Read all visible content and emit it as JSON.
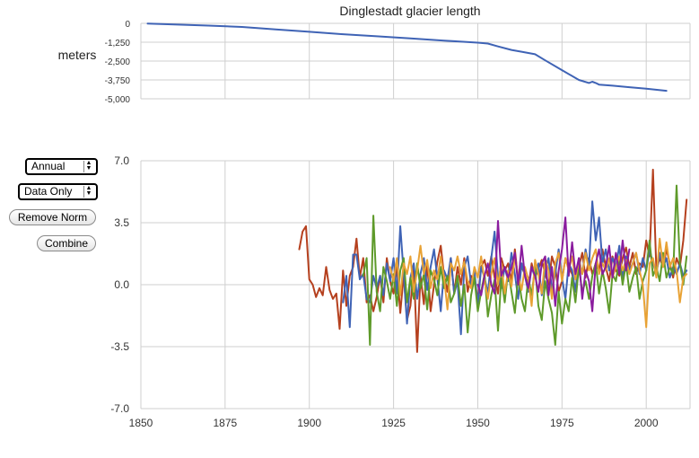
{
  "controls": {
    "period_select": "Annual",
    "mode_select": "Data Only",
    "remove_norm_label": "Remove Norm",
    "combine_label": "Combine"
  },
  "chart_data": [
    {
      "type": "line",
      "title": "Dinglestadt glacier length",
      "ylabel": "meters",
      "xlim": [
        1850,
        2013
      ],
      "ylim": [
        -5000,
        0
      ],
      "yticks": [
        "0",
        "-1,250",
        "-2,500",
        "-3,750",
        "-5,000"
      ],
      "ytick_values": [
        0,
        -1250,
        -2500,
        -3750,
        -5000
      ],
      "grid": true,
      "series": [
        {
          "color": "#3f63b5",
          "x": [
            1852,
            1860,
            1870,
            1880,
            1890,
            1900,
            1910,
            1920,
            1930,
            1940,
            1950,
            1953,
            1956,
            1960,
            1963,
            1967,
            1970,
            1975,
            1980,
            1983,
            1984,
            1985,
            1986,
            1990,
            1995,
            2000,
            2006
          ],
          "y": [
            -10,
            -70,
            -150,
            -240,
            -400,
            -560,
            -720,
            -860,
            -1000,
            -1140,
            -1280,
            -1340,
            -1530,
            -1760,
            -1880,
            -2050,
            -2450,
            -3100,
            -3750,
            -3950,
            -3870,
            -3950,
            -4060,
            -4130,
            -4230,
            -4330,
            -4470
          ]
        }
      ]
    },
    {
      "type": "line",
      "xlim": [
        1850,
        2013
      ],
      "ylim": [
        -7,
        7
      ],
      "xticks": [
        "1850",
        "1875",
        "1900",
        "1925",
        "1950",
        "1975",
        "2000"
      ],
      "xtick_values": [
        1850,
        1875,
        1900,
        1925,
        1950,
        1975,
        2000
      ],
      "yticks": [
        "7.0",
        "3.5",
        "0.0",
        "-3.5",
        "-7.0"
      ],
      "ytick_values": [
        7,
        3.5,
        0,
        -3.5,
        -7
      ],
      "grid": true,
      "series": [
        {
          "color": "#b5401e",
          "x": [
            1897,
            1898,
            1899,
            1900,
            1901,
            1902,
            1903,
            1904,
            1905,
            1906,
            1907,
            1908,
            1909,
            1910,
            1911,
            1912,
            1913,
            1914,
            1915,
            1916,
            1917,
            1918,
            1919,
            1920,
            1921,
            1922,
            1923,
            1924,
            1925,
            1926,
            1927,
            1928,
            1929,
            1930,
            1931,
            1932,
            1933,
            1934,
            1935,
            1936,
            1937,
            1938,
            1939,
            1940,
            1941,
            1942,
            1943,
            1944,
            1945,
            1946,
            1947,
            1948,
            1949,
            1950,
            1951,
            1952,
            1953,
            1954,
            1955,
            1956,
            1957,
            1958,
            1959,
            1960,
            1961,
            1962,
            1963,
            1964,
            1965,
            1966,
            1967,
            1968,
            1969,
            1970,
            1971,
            1972,
            1973,
            1974,
            1975,
            1976,
            1977,
            1978,
            1979,
            1980,
            1981,
            1982,
            1983,
            1984,
            1985,
            1986,
            1987,
            1988,
            1989,
            1990,
            1991,
            1992,
            1993,
            1994,
            1995,
            1996,
            1997,
            1998,
            1999,
            2000,
            2001,
            2002,
            2003,
            2004,
            2005,
            2006,
            2007,
            2008,
            2009,
            2010,
            2011,
            2012
          ],
          "y": [
            2.0,
            3.0,
            3.3,
            0.3,
            0.0,
            -0.7,
            -0.2,
            -0.6,
            1.0,
            -0.3,
            -0.8,
            -0.5,
            -2.5,
            0.8,
            -1.2,
            0.5,
            1.0,
            2.6,
            0.4,
            1.5,
            -1.0,
            -0.6,
            -1.5,
            -0.7,
            0.5,
            -1.0,
            1.5,
            0.2,
            -0.5,
            1.0,
            -1.6,
            0.6,
            -2.0,
            -1.2,
            1.0,
            -3.8,
            0.5,
            -1.1,
            1.2,
            -1.5,
            0.0,
            1.3,
            2.2,
            0.5,
            -0.4,
            1.5,
            -0.5,
            1.0,
            0.0,
            1.5,
            -0.4,
            0.5,
            0.2,
            -0.8,
            1.0,
            1.4,
            0.5,
            1.6,
            0.4,
            -0.5,
            1.5,
            0.8,
            1.2,
            0.2,
            2.0,
            0.2,
            1.0,
            0.6,
            -0.2,
            1.2,
            0.4,
            0.9,
            1.4,
            0.6,
            0.0,
            1.6,
            1.0,
            -0.4,
            0.2,
            1.5,
            1.0,
            0.6,
            -0.3,
            1.0,
            1.8,
            0.4,
            1.5,
            0.6,
            1.2,
            0.8,
            2.0,
            1.0,
            0.2,
            1.6,
            0.8,
            0.5,
            1.5,
            2.1,
            1.0,
            1.8,
            0.6,
            1.2,
            1.0,
            2.5,
            1.6,
            6.5,
            0.8,
            1.5,
            1.0,
            2.0,
            1.2,
            0.4,
            1.5,
            1.0,
            2.5,
            4.8
          ]
        },
        {
          "color": "#3f63b5",
          "x": [
            1910,
            1911,
            1912,
            1913,
            1914,
            1915,
            1916,
            1917,
            1918,
            1919,
            1920,
            1921,
            1922,
            1923,
            1924,
            1925,
            1926,
            1927,
            1928,
            1929,
            1930,
            1931,
            1932,
            1933,
            1934,
            1935,
            1936,
            1937,
            1938,
            1939,
            1940,
            1941,
            1942,
            1943,
            1944,
            1945,
            1946,
            1947,
            1948,
            1949,
            1950,
            1951,
            1952,
            1953,
            1954,
            1955,
            1956,
            1957,
            1958,
            1959,
            1960,
            1961,
            1962,
            1963,
            1964,
            1965,
            1966,
            1967,
            1968,
            1969,
            1970,
            1971,
            1972,
            1973,
            1974,
            1975,
            1976,
            1977,
            1978,
            1979,
            1980,
            1981,
            1982,
            1983,
            1984,
            1985,
            1986,
            1987,
            1988,
            1989,
            1990,
            1991,
            1992,
            1993,
            1994,
            1995,
            1996,
            1997,
            1998,
            1999,
            2000,
            2001,
            2002,
            2003,
            2004,
            2005,
            2006,
            2007,
            2008,
            2009,
            2010,
            2011,
            2012
          ],
          "y": [
            -1.0,
            0.5,
            -2.4,
            1.7,
            1.7,
            0.3,
            0.6,
            -0.8,
            -1.0,
            0.5,
            -0.2,
            0.5,
            -0.6,
            1.2,
            0.2,
            1.5,
            -0.5,
            3.3,
            0.6,
            -2.2,
            0.4,
            1.2,
            -0.8,
            0.6,
            1.5,
            -0.3,
            1.0,
            2.0,
            0.4,
            -1.5,
            0.8,
            0.3,
            1.5,
            -0.5,
            0.2,
            -2.8,
            1.0,
            1.6,
            0.0,
            0.8,
            -1.2,
            1.0,
            0.4,
            -0.5,
            1.5,
            3.0,
            0.5,
            -0.2,
            1.0,
            0.2,
            1.8,
            0.6,
            -0.8,
            1.2,
            0.5,
            -0.4,
            1.0,
            0.4,
            1.2,
            -0.6,
            0.8,
            1.5,
            -0.3,
            0.6,
            2.0,
            0.4,
            -0.8,
            1.2,
            0.8,
            -0.4,
            1.5,
            0.6,
            2.0,
            1.0,
            4.7,
            2.5,
            3.8,
            1.2,
            2.0,
            0.8,
            1.5,
            1.0,
            2.2,
            0.4,
            1.6,
            0.8,
            1.2,
            1.8,
            0.6,
            1.5,
            0.8,
            2.0,
            1.2,
            0.6,
            1.8,
            1.0,
            1.5,
            0.4,
            1.0,
            0.6,
            1.2,
            0.5,
            0.8
          ]
        },
        {
          "color": "#5e9a2a",
          "x": [
            1916,
            1917,
            1918,
            1919,
            1920,
            1921,
            1922,
            1923,
            1924,
            1925,
            1926,
            1927,
            1928,
            1929,
            1930,
            1931,
            1932,
            1933,
            1934,
            1935,
            1936,
            1937,
            1938,
            1939,
            1940,
            1941,
            1942,
            1943,
            1944,
            1945,
            1946,
            1947,
            1948,
            1949,
            1950,
            1951,
            1952,
            1953,
            1954,
            1955,
            1956,
            1957,
            1958,
            1959,
            1960,
            1961,
            1962,
            1963,
            1964,
            1965,
            1966,
            1967,
            1968,
            1969,
            1970,
            1971,
            1972,
            1973,
            1974,
            1975,
            1976,
            1977,
            1978,
            1979,
            1980,
            1981,
            1982,
            1983,
            1984,
            1985,
            1986,
            1987,
            1988,
            1989,
            1990,
            1991,
            1992,
            1993,
            1994,
            1995,
            1996,
            1997,
            1998,
            1999,
            2000,
            2001,
            2002,
            2003,
            2004,
            2005,
            2006,
            2007,
            2008,
            2009,
            2010,
            2011,
            2012
          ],
          "y": [
            0.5,
            1.5,
            -3.4,
            3.9,
            -0.4,
            -1.5,
            1.0,
            0.2,
            -0.8,
            0.6,
            -1.2,
            0.8,
            1.5,
            -1.0,
            0.4,
            -0.8,
            1.2,
            -0.2,
            0.6,
            -1.4,
            0.8,
            0.3,
            -0.6,
            1.0,
            -0.2,
            0.5,
            -1.0,
            -0.5,
            0.5,
            -1.2,
            0.0,
            -2.7,
            -0.6,
            0.4,
            -1.5,
            -0.4,
            0.6,
            -1.8,
            -0.6,
            0.3,
            -2.6,
            0.4,
            -1.0,
            0.8,
            -0.4,
            -1.6,
            0.5,
            -0.8,
            -1.5,
            0.4,
            -0.6,
            1.0,
            -1.2,
            -2.0,
            0.2,
            -0.8,
            -1.6,
            -3.4,
            -0.4,
            -2.2,
            -0.8,
            -1.5,
            0.4,
            -1.0,
            1.0,
            -0.4,
            0.2,
            -0.8,
            0.5,
            1.2,
            -0.5,
            0.8,
            -0.2,
            -1.6,
            0.6,
            0.2,
            1.5,
            0.0,
            1.2,
            -0.4,
            0.4,
            1.0,
            -0.8,
            0.2,
            0.8,
            2.5,
            0.5,
            1.0,
            0.2,
            1.8,
            0.4,
            1.0,
            0.6,
            5.6,
            1.2,
            0.0,
            1.6
          ]
        },
        {
          "color": "#e8a235",
          "x": [
            1924,
            1925,
            1926,
            1927,
            1928,
            1929,
            1930,
            1931,
            1932,
            1933,
            1934,
            1935,
            1936,
            1937,
            1938,
            1939,
            1940,
            1941,
            1942,
            1943,
            1944,
            1945,
            1946,
            1947,
            1948,
            1949,
            1950,
            1951,
            1952,
            1953,
            1954,
            1955,
            1956,
            1957,
            1958,
            1959,
            1960,
            1961,
            1962,
            1963,
            1964,
            1965,
            1966,
            1967,
            1968,
            1969,
            1970,
            1971,
            1972,
            1973,
            1974,
            1975,
            1976,
            1977,
            1978,
            1979,
            1980,
            1981,
            1982,
            1983,
            1984,
            1985,
            1986,
            1987,
            1988,
            1989,
            1990,
            1991,
            1992,
            1993,
            1994,
            1995,
            1996,
            1997,
            1998,
            1999,
            2000,
            2001,
            2002,
            2003,
            2004,
            2005,
            2006,
            2007,
            2008,
            2009,
            2010,
            2011,
            2012
          ],
          "y": [
            1.0,
            0.2,
            1.5,
            -0.6,
            1.2,
            0.6,
            1.6,
            -0.4,
            0.8,
            2.2,
            0.6,
            1.4,
            -0.2,
            0.8,
            0.3,
            1.6,
            0.4,
            -1.4,
            1.2,
            0.8,
            1.6,
            0.6,
            1.3,
            0.2,
            -0.2,
            1.0,
            0.4,
            1.6,
            0.2,
            -0.8,
            0.6,
            1.5,
            0.0,
            1.2,
            -0.5,
            0.8,
            -0.1,
            1.6,
            0.5,
            -0.3,
            1.0,
            0.3,
            -1.2,
            1.4,
            0.6,
            -0.5,
            1.5,
            0.8,
            -0.8,
            1.2,
            1.8,
            0.2,
            1.5,
            0.8,
            1.6,
            0.3,
            1.4,
            0.6,
            1.8,
            0.8,
            1.5,
            2.0,
            0.6,
            1.2,
            0.8,
            1.5,
            0.4,
            1.0,
            1.6,
            0.8,
            1.4,
            0.6,
            1.2,
            1.8,
            0.8,
            0.0,
            -2.4,
            1.2,
            1.5,
            0.4,
            2.6,
            1.0,
            2.4,
            1.0,
            1.5,
            0.8,
            -1.0,
            0.4,
            0.6
          ]
        },
        {
          "color": "#8a1c9e",
          "x": [
            1950,
            1951,
            1952,
            1953,
            1954,
            1955,
            1956,
            1957,
            1958,
            1959,
            1960,
            1961,
            1962,
            1963,
            1964,
            1965,
            1966,
            1967,
            1968,
            1969,
            1970,
            1971,
            1972,
            1973,
            1974,
            1975,
            1976,
            1977,
            1978,
            1979,
            1980,
            1981,
            1982,
            1983,
            1984,
            1985,
            1986,
            1987,
            1988,
            1989,
            1990,
            1991,
            1992,
            1993,
            1994,
            1995
          ],
          "y": [
            0.0,
            -0.6,
            0.5,
            1.2,
            0.0,
            -0.5,
            3.6,
            0.5,
            1.0,
            0.4,
            1.0,
            1.8,
            0.0,
            2.2,
            0.5,
            -0.2,
            1.0,
            0.5,
            -0.4,
            1.2,
            1.6,
            -0.6,
            1.0,
            -1.2,
            0.8,
            2.0,
            3.8,
            0.5,
            2.4,
            0.6,
            1.5,
            -0.8,
            0.8,
            0.2,
            -1.5,
            1.2,
            2.0,
            0.6,
            1.0,
            2.2,
            0.4,
            1.8,
            0.6,
            2.5,
            0.8,
            2.0
          ]
        }
      ]
    }
  ]
}
